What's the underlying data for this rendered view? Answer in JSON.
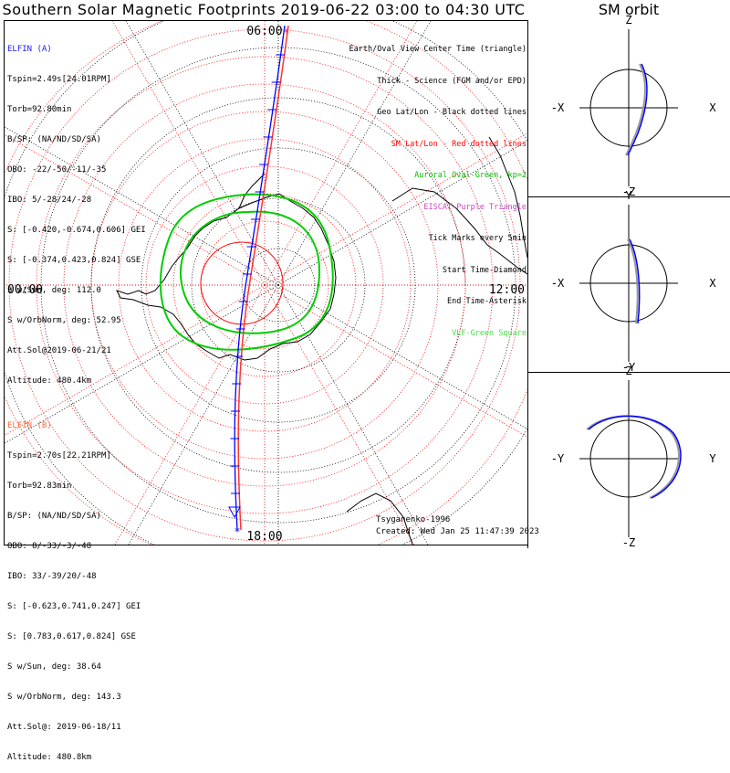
{
  "title": "Southern Solar Magnetic Footprints 2019-06-22 03:00 to 04:30 UTC",
  "sm_orbit_title": "SM orbit",
  "map": {
    "top_label": "06:00",
    "bottom_label": "18:00",
    "left_label": "00:00",
    "right_label": "12:00"
  },
  "elfin_a": {
    "name": "ELFIN (A)",
    "color": "#1a1aff",
    "lines": [
      "Tspin=2.49s[24.01RPM]",
      "Torb=92.80min",
      "B/SP: (NA/ND/SD/SA)",
      "OBO: -22/-50/-11/-35",
      "IBO: 5/-28/24/-28",
      "S: [-0.420,-0.674,0.606] GEI",
      "S: [-0.374,0.423,0.824] GSE",
      "S w/Sun, deg: 112.0",
      "S w/OrbNorm, deg: 52.95",
      "Att.Sol@2019-06-21/21",
      "Altitude: 480.4km"
    ]
  },
  "elfin_b": {
    "name": "ELFIN (B)",
    "color": "#ff6633",
    "lines": [
      "Tspin=2.70s[22.21RPM]",
      "Torb=92.83min",
      "B/SP: (NA/ND/SD/SA)",
      "OBO: 8/-33/-3/-48",
      "IBO: 33/-39/20/-48",
      "S: [-0.623,0.741,0.247] GEI",
      "S: [0.783,0.617,0.824] GSE",
      "S w/Sun, deg: 38.64",
      "S w/OrbNorm, deg: 143.3",
      "Att.Sol@: 2019-06-18/11",
      "Altitude: 480.8km"
    ]
  },
  "legend": [
    {
      "text": "Earth/Oval View Center Time (triangle)",
      "color": "#000000"
    },
    {
      "text": "Thick - Science (FGM and/or EPD)",
      "color": "#000000"
    },
    {
      "text": "Geo Lat/Lon - Black dotted lines",
      "color": "#000000"
    },
    {
      "text": "SM Lat/Lon - Red dotted lines",
      "color": "#ff0000"
    },
    {
      "text": "Auroral Oval-Green, kp=2",
      "color": "#00bb00"
    },
    {
      "text": "EISCAT-Purple Triangle",
      "color": "#cc44cc"
    },
    {
      "text": "Tick Marks every 5min",
      "color": "#000000"
    },
    {
      "text": "Start Time-Diamond",
      "color": "#000000"
    },
    {
      "text": "End Time-Asterisk",
      "color": "#000000"
    },
    {
      "text": "VLF-Green Square",
      "color": "#44dd44"
    }
  ],
  "credits": {
    "model": "Tsyganenko-1996",
    "created": "Created: Wed Jan 25 11:47:39 2023"
  },
  "sm_panels": [
    {
      "top": "Z",
      "bottom": "-Z",
      "left": "-X",
      "right": "X"
    },
    {
      "top": "Y",
      "bottom": "-Y",
      "left": "-X",
      "right": "X"
    },
    {
      "top": "Z",
      "bottom": "-Z",
      "left": "-Y",
      "right": "Y"
    }
  ]
}
